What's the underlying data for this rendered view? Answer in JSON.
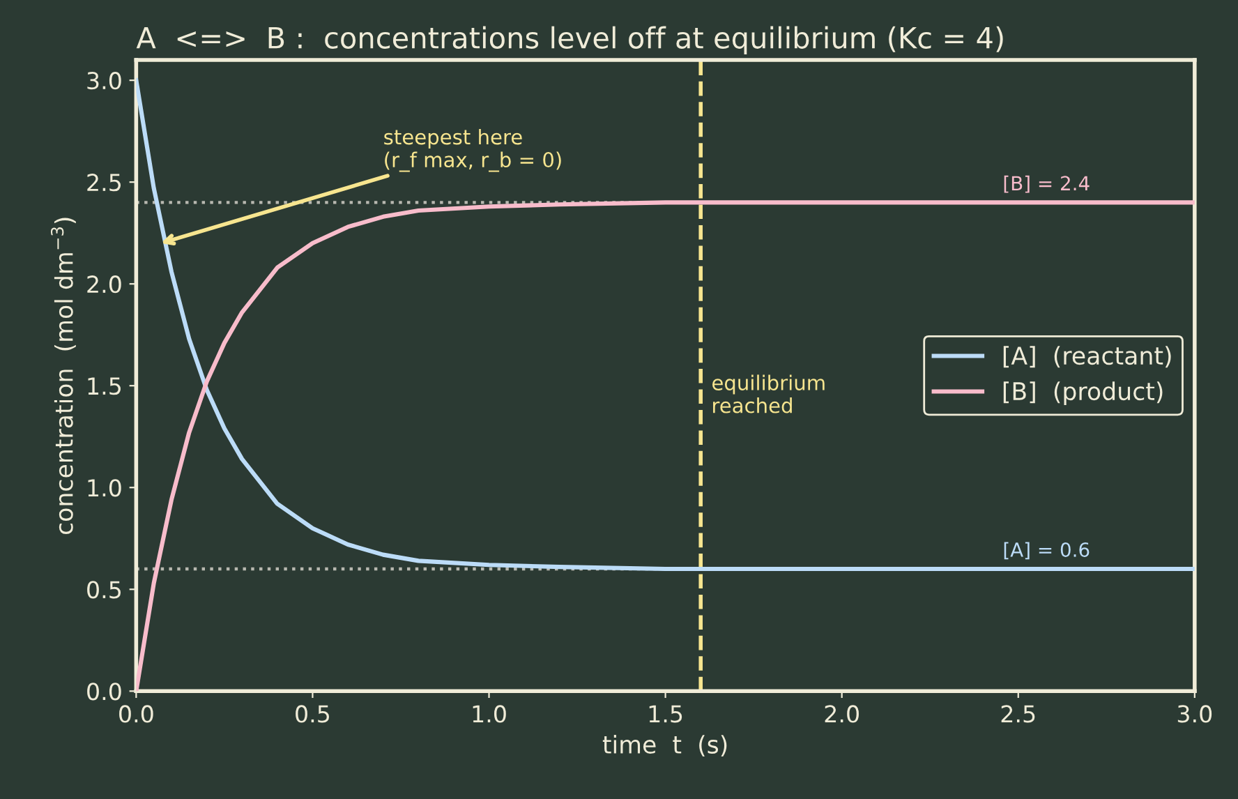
{
  "chart_data": {
    "type": "line",
    "title": "A  <=>  B :  concentrations level off at equilibrium (Kc = 4)",
    "xlabel": "time  t  (s)",
    "ylabel": "concentration  (mol dm$^{−3}$)",
    "x": [
      0,
      0.05,
      0.1,
      0.15,
      0.2,
      0.25,
      0.3,
      0.4,
      0.5,
      0.6,
      0.7,
      0.8,
      1.0,
      1.2,
      1.5,
      2.0,
      2.5,
      3.0
    ],
    "series": [
      {
        "name": "[A]  (reactant)",
        "color": "#bcdcf8",
        "values": [
          3.0,
          2.47,
          2.06,
          1.73,
          1.48,
          1.29,
          1.14,
          0.92,
          0.8,
          0.72,
          0.67,
          0.64,
          0.62,
          0.61,
          0.6,
          0.6,
          0.6,
          0.6
        ]
      },
      {
        "name": "[B]  (product)",
        "color": "#f8bccb",
        "values": [
          0,
          0.53,
          0.94,
          1.27,
          1.52,
          1.71,
          1.86,
          2.08,
          2.2,
          2.28,
          2.33,
          2.36,
          2.38,
          2.39,
          2.4,
          2.4,
          2.4,
          2.4
        ]
      }
    ],
    "xlim": [
      0,
      3
    ],
    "ylim": [
      0,
      3.1
    ],
    "xticks": [
      {
        "value": 0,
        "label": "0.0"
      },
      0.5,
      {
        "value": 1,
        "label": "1.0"
      },
      1.5,
      {
        "value": 2,
        "label": "2.0"
      },
      2.5,
      {
        "value": 3,
        "label": "3.0"
      }
    ],
    "yticks": [
      {
        "value": 0,
        "label": "0.0"
      },
      0.5,
      {
        "value": 1,
        "label": "1.0"
      },
      1.5,
      {
        "value": 2,
        "label": "2.0"
      },
      2.5,
      {
        "value": 3,
        "label": "3.0"
      }
    ],
    "ref_lines": [
      {
        "axis": "y",
        "value": 2.4,
        "label": "[B] = 2.4",
        "color": "#b8b8b0",
        "line_style": "dotted"
      },
      {
        "axis": "y",
        "value": 0.6,
        "label": "[A] = 0.6",
        "color": "#b8b8b0",
        "line_style": "dotted"
      },
      {
        "axis": "x",
        "value": 1.6,
        "label": "equilibrium\nreached",
        "color": "#f7e58f",
        "line_style": "dashed"
      }
    ],
    "annotations": [
      {
        "text": "steepest here\n(r_f max, r_b = 0)",
        "x": 0.07,
        "y": 2.2
      }
    ],
    "legend": "right",
    "grid": false,
    "marker": "none",
    "line_style": "solid"
  }
}
